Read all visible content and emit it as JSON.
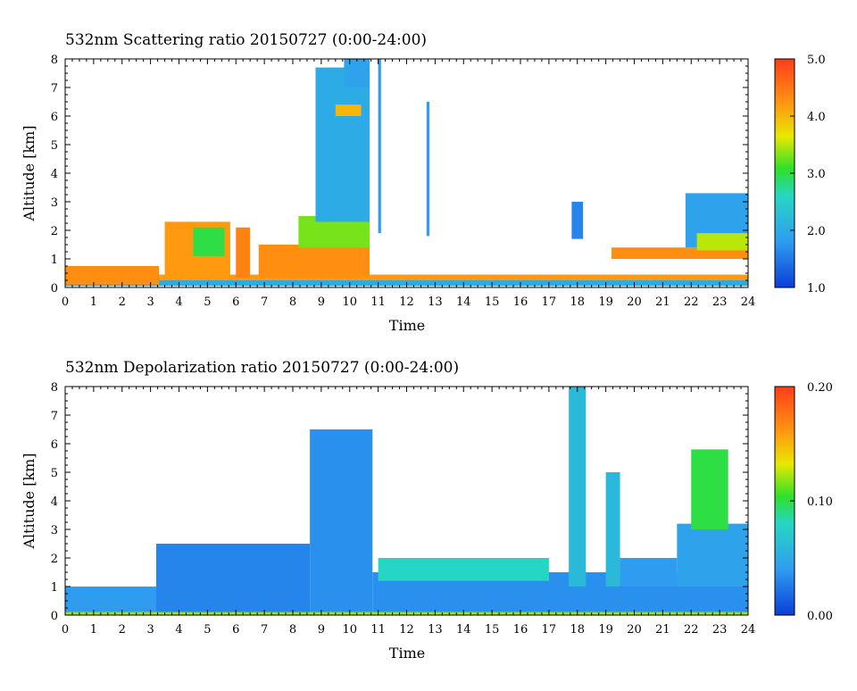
{
  "chart_data": [
    {
      "type": "heatmap",
      "title": "532nm Scattering ratio  20150727 (0:00-24:00)",
      "xlabel": "Time",
      "ylabel": "Altitude [km]",
      "xlim": [
        0,
        24
      ],
      "ylim": [
        0,
        8
      ],
      "xticks": [
        "0",
        "1",
        "2",
        "3",
        "4",
        "5",
        "6",
        "7",
        "8",
        "9",
        "10",
        "11",
        "12",
        "13",
        "14",
        "15",
        "16",
        "17",
        "18",
        "19",
        "20",
        "21",
        "22",
        "23",
        "24"
      ],
      "yticks": [
        "0",
        "1",
        "2",
        "3",
        "4",
        "5",
        "6",
        "7",
        "8"
      ],
      "colorbar": {
        "min": 1.0,
        "max": 5.0,
        "labels": [
          "1.0",
          "2.0",
          "3.0",
          "4.0",
          "5.0"
        ]
      },
      "layers": [
        {
          "x0": 0,
          "x1": 24,
          "y0": 0.25,
          "y1": 0.45,
          "value": 4.2
        },
        {
          "x0": 0,
          "x1": 24,
          "y0": 0.05,
          "y1": 0.25,
          "value": 2.0
        },
        {
          "x0": 0,
          "x1": 3.3,
          "y0": 0.1,
          "y1": 0.75,
          "value": 4.3
        },
        {
          "x0": 3.5,
          "x1": 5.8,
          "y0": 0.35,
          "y1": 2.3,
          "value": 4.2
        },
        {
          "x0": 4.5,
          "x1": 5.6,
          "y0": 1.1,
          "y1": 2.1,
          "value": 3.0
        },
        {
          "x0": 6.0,
          "x1": 6.5,
          "y0": 0.35,
          "y1": 2.1,
          "value": 4.4
        },
        {
          "x0": 6.8,
          "x1": 10.7,
          "y0": 0.35,
          "y1": 1.5,
          "value": 4.3
        },
        {
          "x0": 8.2,
          "x1": 10.7,
          "y0": 1.4,
          "y1": 2.5,
          "value": 3.3
        },
        {
          "x0": 8.8,
          "x1": 10.7,
          "y0": 2.3,
          "y1": 7.7,
          "value": 2.0
        },
        {
          "x0": 9.8,
          "x1": 10.7,
          "y0": 7.0,
          "y1": 8.0,
          "value": 1.9
        },
        {
          "x0": 9.5,
          "x1": 10.4,
          "y0": 6.0,
          "y1": 6.4,
          "value": 4.0
        },
        {
          "x0": 11.0,
          "x1": 11.1,
          "y0": 1.9,
          "y1": 8.0,
          "value": 1.8
        },
        {
          "x0": 12.7,
          "x1": 12.8,
          "y0": 1.8,
          "y1": 6.5,
          "value": 1.8
        },
        {
          "x0": 17.8,
          "x1": 18.2,
          "y0": 1.7,
          "y1": 3.0,
          "value": 1.6
        },
        {
          "x0": 19.2,
          "x1": 24.0,
          "y0": 1.0,
          "y1": 1.4,
          "value": 4.3
        },
        {
          "x0": 21.8,
          "x1": 24.0,
          "y0": 1.4,
          "y1": 3.3,
          "value": 1.9
        },
        {
          "x0": 22.2,
          "x1": 24.0,
          "y0": 1.3,
          "y1": 1.9,
          "value": 3.5
        }
      ]
    },
    {
      "type": "heatmap",
      "title": "532nm Depolarization ratio  20150727 (0:00-24:00)",
      "xlabel": "Time",
      "ylabel": "Altitude [km]",
      "xlim": [
        0,
        24
      ],
      "ylim": [
        0,
        8
      ],
      "xticks": [
        "0",
        "1",
        "2",
        "3",
        "4",
        "5",
        "6",
        "7",
        "8",
        "9",
        "10",
        "11",
        "12",
        "13",
        "14",
        "15",
        "16",
        "17",
        "18",
        "19",
        "20",
        "21",
        "22",
        "23",
        "24"
      ],
      "yticks": [
        "0",
        "1",
        "2",
        "3",
        "4",
        "5",
        "6",
        "7",
        "8"
      ],
      "colorbar": {
        "min": 0.0,
        "max": 0.2,
        "labels": [
          "0.00",
          "0.10",
          "0.20"
        ]
      },
      "layers": [
        {
          "x0": 0,
          "x1": 3.2,
          "y0": 0.1,
          "y1": 1.0,
          "value": 0.04
        },
        {
          "x0": 3.2,
          "x1": 8.6,
          "y0": 0.1,
          "y1": 2.5,
          "value": 0.03
        },
        {
          "x0": 8.6,
          "x1": 10.8,
          "y0": 0.1,
          "y1": 6.5,
          "value": 0.035
        },
        {
          "x0": 10.8,
          "x1": 24.0,
          "y0": 0.1,
          "y1": 1.5,
          "value": 0.035
        },
        {
          "x0": 11.0,
          "x1": 17.0,
          "y0": 1.2,
          "y1": 2.0,
          "value": 0.08
        },
        {
          "x0": 17.7,
          "x1": 18.3,
          "y0": 1.0,
          "y1": 8.0,
          "value": 0.06
        },
        {
          "x0": 19.0,
          "x1": 19.5,
          "y0": 1.0,
          "y1": 5.0,
          "value": 0.06
        },
        {
          "x0": 19.5,
          "x1": 21.5,
          "y0": 1.0,
          "y1": 2.0,
          "value": 0.04
        },
        {
          "x0": 21.5,
          "x1": 24.0,
          "y0": 1.0,
          "y1": 3.2,
          "value": 0.045
        },
        {
          "x0": 22.0,
          "x1": 23.3,
          "y0": 3.0,
          "y1": 5.8,
          "value": 0.1
        },
        {
          "x0": 0,
          "x1": 24.0,
          "y0": 0.0,
          "y1": 0.1,
          "value": 0.12
        }
      ]
    }
  ]
}
